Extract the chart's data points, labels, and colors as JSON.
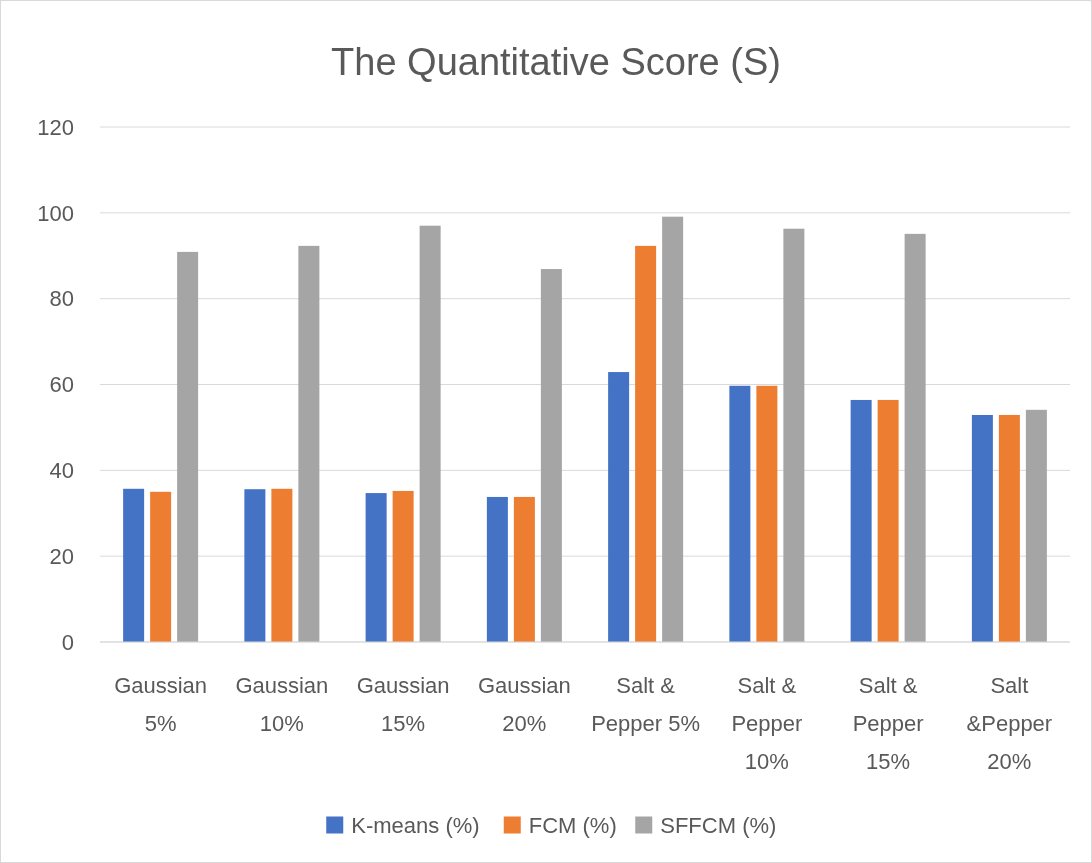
{
  "chart_data": {
    "type": "bar",
    "title": "The Quantitative Score (S)",
    "categories": [
      "Gaussian 5%",
      "Gaussian 10%",
      "Gaussian 15%",
      "Gaussian 20%",
      "Salt & Pepper 5%",
      "Salt & Pepper 10%",
      "Salt & Pepper 15%",
      "Salt &Pepper 20%"
    ],
    "series": [
      {
        "name": "K-means (%)",
        "color": "#4472c4",
        "values": [
          35.7,
          35.6,
          34.7,
          33.8,
          62.9,
          59.7,
          56.4,
          52.9
        ]
      },
      {
        "name": "FCM (%)",
        "color": "#ed7d31",
        "values": [
          35.0,
          35.7,
          35.2,
          33.8,
          92.3,
          59.7,
          56.4,
          52.9
        ]
      },
      {
        "name": "SFFCM (%)",
        "color": "#a5a5a5",
        "values": [
          90.9,
          92.3,
          97.0,
          86.9,
          99.1,
          96.3,
          95.1,
          54.1
        ]
      }
    ],
    "ylim": [
      0,
      120
    ],
    "yticks": [
      0,
      20,
      40,
      60,
      80,
      100,
      120
    ],
    "grid": "y",
    "legend": "bottom"
  }
}
